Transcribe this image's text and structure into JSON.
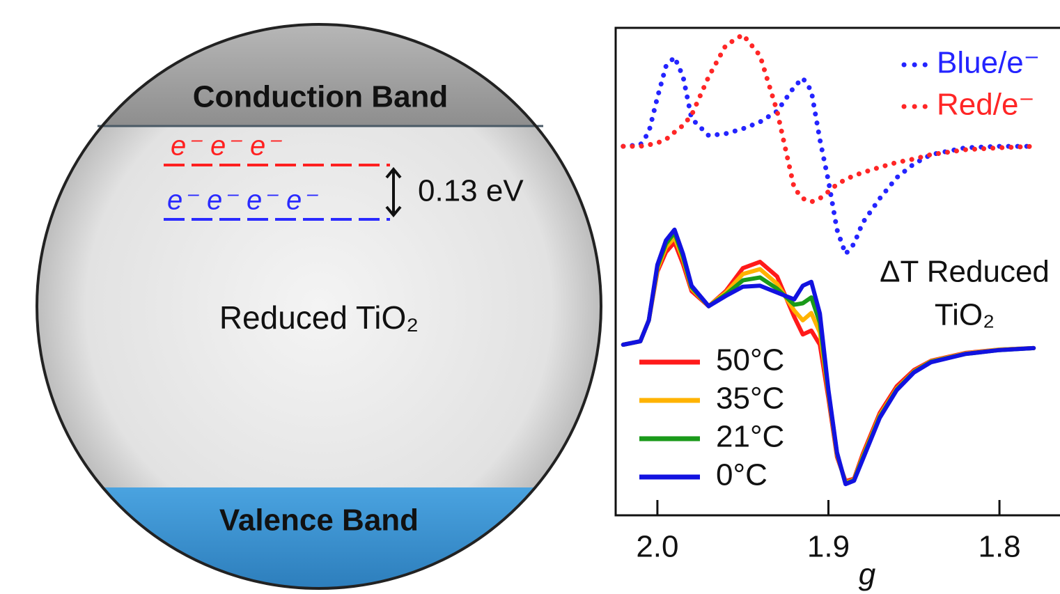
{
  "diagram": {
    "conduction_band": "Conduction Band",
    "valence_band": "Valence Band",
    "center_label": "Reduced TiO₂",
    "gap_label": "0.13 eV",
    "red_electrons": [
      "e⁻",
      "e⁻",
      "e⁻"
    ],
    "blue_electrons": [
      "e⁻",
      "e⁻",
      "e⁻",
      "e⁻"
    ]
  },
  "chart_data": {
    "type": "line",
    "x_label": "g",
    "annotation": [
      "ΔT Reduced",
      "TiO₂"
    ],
    "x": [
      2.02,
      2.01,
      2.005,
      2.0,
      1.995,
      1.99,
      1.985,
      1.98,
      1.97,
      1.96,
      1.95,
      1.94,
      1.93,
      1.92,
      1.915,
      1.91,
      1.905,
      1.9,
      1.895,
      1.89,
      1.885,
      1.88,
      1.87,
      1.86,
      1.85,
      1.84,
      1.82,
      1.8,
      1.78
    ],
    "xlim": [
      2.0244,
      1.7646
    ],
    "xticks": [
      {
        "value": 2.0,
        "label": "2.0"
      },
      1.9,
      1.8
    ],
    "ylim": [
      0,
      100
    ],
    "series": [
      {
        "name": "Blue/e⁻",
        "color": "#2424ff",
        "line_style": "dotted",
        "values": [
          75.7,
          76,
          78.6,
          85.7,
          92.1,
          94,
          90,
          81.4,
          77.9,
          78.3,
          79.3,
          80.7,
          82.9,
          87.9,
          89.7,
          87.1,
          77.1,
          68.6,
          58.6,
          53.6,
          55.7,
          60,
          65,
          69.3,
          72.1,
          74,
          75.4,
          75.7,
          75.7
        ]
      },
      {
        "name": "Red/e⁻",
        "color": "#ff2626",
        "line_style": "dotted",
        "values": [
          75.7,
          75.7,
          76,
          76.4,
          77.1,
          78.6,
          80,
          82.1,
          90,
          96.4,
          98.6,
          94.3,
          82.9,
          67.1,
          65,
          64.3,
          65,
          66.4,
          67.9,
          68.9,
          69.7,
          70.3,
          71.4,
          72.4,
          73.1,
          74,
          75,
          75.4,
          75.7
        ]
      },
      {
        "name": "50°C",
        "color": "#ff1a1a",
        "line_style": "solid",
        "values": [
          35,
          35.7,
          40,
          50,
          54,
          56,
          51.5,
          46,
          42.9,
          46,
          50.7,
          52,
          49,
          40.7,
          37.1,
          37.9,
          35,
          24,
          12,
          7,
          7.5,
          12.5,
          21,
          26.5,
          29.8,
          31.7,
          33.3,
          34,
          34.3
        ]
      },
      {
        "name": "35°C",
        "color": "#ffb300",
        "line_style": "solid",
        "values": [
          35,
          35.7,
          40,
          50.5,
          55,
          57,
          52.5,
          46.5,
          42.9,
          45.7,
          49.5,
          50.5,
          47.5,
          42,
          40,
          41.5,
          37.5,
          25,
          12.5,
          6.7,
          7.3,
          12,
          20.5,
          26,
          29.5,
          31.6,
          33.2,
          34,
          34.3
        ]
      },
      {
        "name": "21°C",
        "color": "#1a9a1a",
        "line_style": "solid",
        "values": [
          35,
          35.7,
          40,
          51,
          55.7,
          58,
          53,
          46.8,
          42.9,
          45.3,
          48.2,
          48.8,
          46.5,
          43.2,
          43.5,
          44.7,
          39.5,
          25.3,
          12.7,
          6.5,
          7.2,
          11.7,
          20.2,
          25.8,
          29.4,
          31.5,
          33.1,
          33.9,
          34.3
        ]
      },
      {
        "name": "0°C",
        "color": "#1212e0",
        "line_style": "solid",
        "values": [
          35,
          35.7,
          40,
          51.4,
          56.4,
          58.6,
          53.6,
          47.1,
          42.9,
          45,
          46.9,
          47.1,
          45.7,
          44.3,
          47.1,
          47.9,
          41.4,
          25.7,
          12.9,
          6.4,
          7.1,
          11.4,
          20,
          25.7,
          29.3,
          31.4,
          33.1,
          33.9,
          34.3
        ]
      }
    ]
  }
}
